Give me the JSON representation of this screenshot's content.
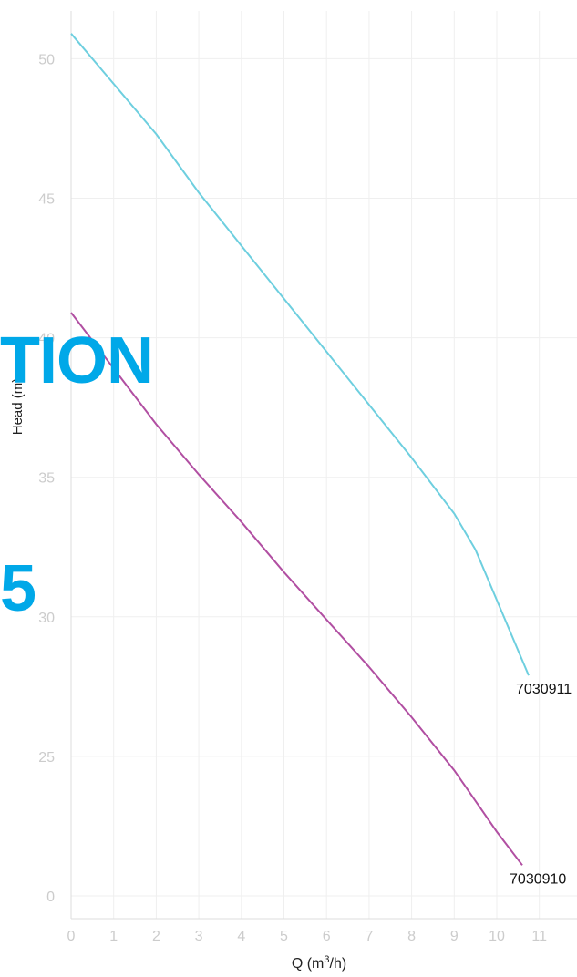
{
  "watermark": {
    "line1": "TION",
    "line2": "5",
    "color": "#00a8e8"
  },
  "chart_data": {
    "type": "line",
    "title": "",
    "xlabel_base": "Q (m",
    "xlabel_sup": "3",
    "xlabel_tail": "/h)",
    "ylabel": "Head (m)",
    "xlim": [
      0,
      12
    ],
    "x_ticks": [
      0,
      1,
      2,
      3,
      4,
      5,
      6,
      7,
      8,
      9,
      10,
      11
    ],
    "y_ticks": [
      {
        "label": "0",
        "pos": 0
      },
      {
        "label": "25",
        "pos": 1
      },
      {
        "label": "30",
        "pos": 2
      },
      {
        "label": "35",
        "pos": 3
      },
      {
        "label": "40",
        "pos": 4
      },
      {
        "label": "45",
        "pos": 5
      },
      {
        "label": "50",
        "pos": 6
      }
    ],
    "y_axis_break": "values below 25 are compressed to the bottom band; tick at 0",
    "grid": true,
    "series": [
      {
        "name": "7030911",
        "color": "#6ecfdf",
        "points": [
          [
            0,
            50.9
          ],
          [
            1,
            49.1
          ],
          [
            2,
            47.3
          ],
          [
            3,
            45.2
          ],
          [
            4,
            43.3
          ],
          [
            5,
            41.4
          ],
          [
            6,
            39.5
          ],
          [
            7,
            37.6
          ],
          [
            8,
            35.7
          ],
          [
            9,
            33.7
          ],
          [
            9.5,
            32.4
          ],
          [
            10,
            30.6
          ],
          [
            10.75,
            27.9
          ]
        ]
      },
      {
        "name": "7030910",
        "color": "#b14fa2",
        "points": [
          [
            0,
            40.9
          ],
          [
            1,
            38.9
          ],
          [
            2,
            36.9
          ],
          [
            3,
            35.1
          ],
          [
            4,
            33.4
          ],
          [
            5,
            31.6
          ],
          [
            6,
            29.9
          ],
          [
            7,
            28.2
          ],
          [
            8,
            26.4
          ],
          [
            9,
            24.5
          ],
          [
            9.5,
            23.4
          ],
          [
            10,
            22.3
          ],
          [
            10.6,
            21.1
          ]
        ]
      }
    ]
  }
}
